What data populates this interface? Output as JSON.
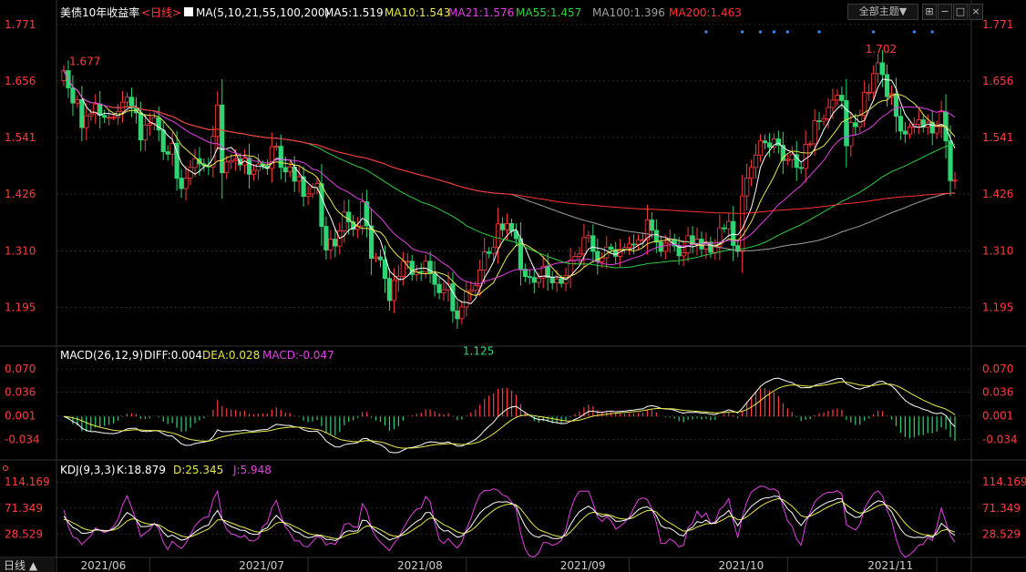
{
  "header": {
    "title": "美债10年收益率",
    "period": "<日线>",
    "ma_label": "MA(5,10,21,55,100,200)",
    "ma_values": [
      {
        "text": "MA5:1.519",
        "color": "#ffffff"
      },
      {
        "text": "MA10:1.543",
        "color": "#e8e84a"
      },
      {
        "text": "MA21:1.576",
        "color": "#e040e0"
      },
      {
        "text": "MA55:1.457",
        "color": "#2ecc40"
      },
      {
        "text": "MA100:1.396",
        "color": "#a0a0a0"
      },
      {
        "text": "MA200:1.463",
        "color": "#ff3030"
      }
    ],
    "theme_button": "全部主题▼"
  },
  "macd_header": {
    "label": "MACD(26,12,9)",
    "diff": "DIFF:0.004",
    "dea": "DEA:0.028",
    "macd": "MACD:-0.047"
  },
  "kdj_header": {
    "label": "KDJ(9,3,3)",
    "k": "K:18.879",
    "d": "D:25.345",
    "j": "J:5.948"
  },
  "footer": {
    "period": "日线 ▲"
  },
  "colors": {
    "up": "#ff3b3b",
    "down": "#2ed573",
    "grid": "#2a2a2a",
    "axis": "#ff3b3b"
  },
  "chart_data": [
    {
      "type": "candlestick",
      "title": "美债10年收益率",
      "y_ticks": [
        "1.771",
        "1.656",
        "1.541",
        "1.426",
        "1.310",
        "1.195"
      ],
      "ylim": [
        1.12,
        1.78
      ],
      "x_ticks": [
        {
          "label": "2021/06",
          "index": 19
        },
        {
          "label": "2021/07",
          "index": 54
        },
        {
          "label": "2021/08",
          "index": 89
        },
        {
          "label": "2021/09",
          "index": 125
        },
        {
          "label": "2021/10",
          "index": 160
        },
        {
          "label": "2021/11",
          "index": 193
        }
      ],
      "annotations": [
        {
          "text": "1.677",
          "index": 0,
          "value": 1.677,
          "color": "#ff3b3b"
        },
        {
          "text": "1.125",
          "index": 87,
          "value": 1.125,
          "color": "#2ed573"
        },
        {
          "text": "1.702",
          "index": 176,
          "value": 1.702,
          "color": "#ff3b3b"
        }
      ],
      "closes": [
        1.677,
        1.642,
        1.611,
        1.618,
        1.561,
        1.585,
        1.589,
        1.609,
        1.586,
        1.582,
        1.582,
        1.582,
        1.594,
        1.613,
        1.623,
        1.601,
        1.591,
        1.536,
        1.566,
        1.569,
        1.581,
        1.556,
        1.512,
        1.507,
        1.529,
        1.458,
        1.437,
        1.458,
        1.48,
        1.498,
        1.487,
        1.483,
        1.481,
        1.543,
        1.607,
        1.469,
        1.491,
        1.494,
        1.497,
        1.485,
        1.499,
        1.466,
        1.474,
        1.487,
        1.483,
        1.478,
        1.522,
        1.523,
        1.48,
        1.471,
        1.481,
        1.452,
        1.461,
        1.421,
        1.426,
        1.439,
        1.447,
        1.36,
        1.312,
        1.334,
        1.32,
        1.351,
        1.389,
        1.369,
        1.354,
        1.361,
        1.41,
        1.361,
        1.295,
        1.298,
        1.292,
        1.254,
        1.209,
        1.25,
        1.258,
        1.289,
        1.289,
        1.262,
        1.268,
        1.267,
        1.289,
        1.264,
        1.242,
        1.225,
        1.231,
        1.243,
        1.188,
        1.172,
        1.196,
        1.227,
        1.23,
        1.239,
        1.271,
        1.308,
        1.305,
        1.317,
        1.365,
        1.353,
        1.366,
        1.35,
        1.335,
        1.273,
        1.258,
        1.256,
        1.246,
        1.255,
        1.279,
        1.256,
        1.245,
        1.253,
        1.244,
        1.26,
        1.291,
        1.299,
        1.304,
        1.337,
        1.341,
        1.309,
        1.288,
        1.296,
        1.318,
        1.313,
        1.299,
        1.313,
        1.317,
        1.324,
        1.323,
        1.332,
        1.333,
        1.373,
        1.352,
        1.328,
        1.309,
        1.326,
        1.334,
        1.32,
        1.3,
        1.306,
        1.341,
        1.324,
        1.334,
        1.314,
        1.328,
        1.307,
        1.319,
        1.357,
        1.355,
        1.37,
        1.321,
        1.309,
        1.422,
        1.458,
        1.48,
        1.505,
        1.534,
        1.53,
        1.521,
        1.538,
        1.525,
        1.494,
        1.496,
        1.506,
        1.48,
        1.478,
        1.527,
        1.528,
        1.575,
        1.574,
        1.579,
        1.602,
        1.617,
        1.627,
        1.616,
        1.524,
        1.571,
        1.563,
        1.586,
        1.633,
        1.633,
        1.671,
        1.693,
        1.669,
        1.624,
        1.63,
        1.584,
        1.554,
        1.548,
        1.562,
        1.568,
        1.577,
        1.562,
        1.572,
        1.55,
        1.563,
        1.593,
        1.534,
        1.453,
        1.454
      ]
    },
    {
      "type": "bar",
      "title": "MACD(26,12,9)",
      "y_ticks": [
        "0.070",
        "0.036",
        "0.001",
        "-0.034"
      ],
      "ylim": [
        -0.06,
        0.085
      ]
    },
    {
      "type": "line",
      "title": "KDJ(9,3,3)",
      "y_ticks": [
        "114.169",
        "71.349",
        "28.529"
      ],
      "ylim": [
        -10,
        128
      ]
    }
  ]
}
